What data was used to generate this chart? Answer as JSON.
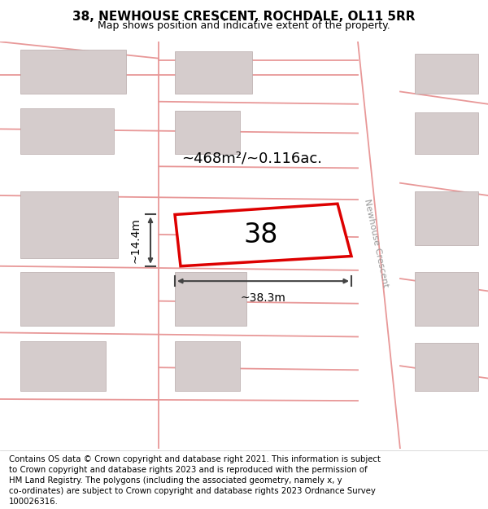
{
  "title": "38, NEWHOUSE CRESCENT, ROCHDALE, OL11 5RR",
  "subtitle": "Map shows position and indicative extent of the property.",
  "footer_line1": "Contains OS data © Crown copyright and database right 2021. This information is subject",
  "footer_line2": "to Crown copyright and database rights 2023 and is reproduced with the permission of",
  "footer_line3": "HM Land Registry. The polygons (including the associated geometry, namely x, y",
  "footer_line4": "co-ordinates) are subject to Crown copyright and database rights 2023 Ordnance Survey",
  "footer_line5": "100026316.",
  "map_bg": "#faf5f5",
  "bld_color": "#d5cccc",
  "bld_edge": "#b8aaaa",
  "road_color": "#e89898",
  "plot_edge": "#dd0000",
  "plot_fill": "#ffffff",
  "dim_color": "#444444",
  "street_color": "#999999",
  "area_text": "~468m²/~0.116ac.",
  "dim_w": "~38.3m",
  "dim_h": "~14.4m",
  "property_num": "38",
  "street_name": "Newhouse Crescent",
  "title_fs": 11,
  "subtitle_fs": 9,
  "footer_fs": 7.3,
  "prop_num_fs": 24,
  "area_fs": 13,
  "dim_fs": 10,
  "street_fs": 8
}
